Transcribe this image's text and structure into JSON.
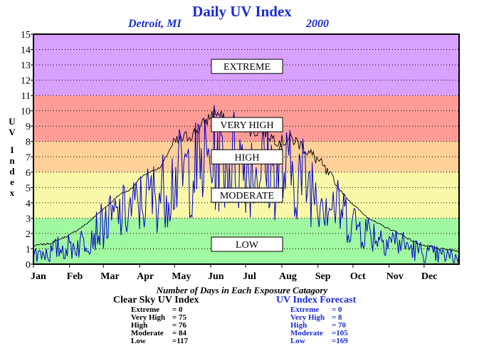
{
  "header": {
    "title": "Daily UV Index",
    "location": "Detroit, MI",
    "year": "2000"
  },
  "axis": {
    "ylabel_chars": [
      "U",
      "V",
      "I",
      "n",
      "d",
      "e",
      "x"
    ]
  },
  "footer": {
    "caption": "Number of Days in Each Exposure Catagory",
    "clear_sky": {
      "heading": "Clear Sky UV Index",
      "rows": [
        {
          "label": "Extreme",
          "value": "= 0"
        },
        {
          "label": "Very High",
          "value": "= 75"
        },
        {
          "label": "High",
          "value": "= 76"
        },
        {
          "label": "Moderate",
          "value": "= 84"
        },
        {
          "label": "Low",
          "value": "=117"
        }
      ]
    },
    "forecast": {
      "heading": "UV Index Forecast",
      "rows": [
        {
          "label": "Extreme",
          "value": "= 0"
        },
        {
          "label": "Very High",
          "value": "= 8"
        },
        {
          "label": "High",
          "value": "= 70"
        },
        {
          "label": "Moderate",
          "value": "=105"
        },
        {
          "label": "Low",
          "value": "=169"
        }
      ]
    }
  },
  "chart_data": {
    "type": "line",
    "title": "Daily UV Index",
    "subtitle": "Detroit, MI 2000",
    "ylabel": "UV Index",
    "xlabel": "",
    "xlim": [
      1,
      366
    ],
    "ylim": [
      0,
      15
    ],
    "yticks": [
      0,
      1,
      2,
      3,
      4,
      5,
      6,
      7,
      8,
      9,
      10,
      11,
      12,
      13,
      14,
      15
    ],
    "x_tick_labels": [
      "Jan",
      "Feb",
      "Mar",
      "Apr",
      "May",
      "Jun",
      "Jul",
      "Aug",
      "Sep",
      "Oct",
      "Nov",
      "Dec"
    ],
    "x_tick_days": [
      1,
      32,
      61,
      92,
      122,
      153,
      183,
      214,
      245,
      275,
      306,
      336
    ],
    "grid": true,
    "bands": [
      {
        "label": "LOW",
        "from": 0,
        "to": 3,
        "color": "#a0f8a0",
        "label_y": 1.3
      },
      {
        "label": "MODERATE",
        "from": 3,
        "to": 6,
        "color": "#f8f8a8",
        "label_y": 4.5
      },
      {
        "label": "HIGH",
        "from": 6,
        "to": 8,
        "color": "#ffd098",
        "label_y": 7.0
      },
      {
        "label": "VERY HIGH",
        "from": 8,
        "to": 11,
        "color": "#ff9c98",
        "label_y": 9.1
      },
      {
        "label": "EXTREME",
        "from": 11,
        "to": 15,
        "color": "#d8a0ff",
        "label_y": 12.9
      }
    ],
    "series": [
      {
        "name": "Clear Sky UV Index",
        "color": "#000000",
        "points": [
          [
            1,
            1.2
          ],
          [
            15,
            1.35
          ],
          [
            32,
            1.9
          ],
          [
            46,
            2.6
          ],
          [
            61,
            3.6
          ],
          [
            76,
            4.6
          ],
          [
            85,
            4.9
          ],
          [
            92,
            5.6
          ],
          [
            100,
            6.0
          ],
          [
            110,
            6.3
          ],
          [
            118,
            7.5
          ],
          [
            122,
            7.9
          ],
          [
            132,
            8.3
          ],
          [
            140,
            8.6
          ],
          [
            150,
            9.4
          ],
          [
            156,
            10.0
          ],
          [
            162,
            9.6
          ],
          [
            168,
            9.1
          ],
          [
            172,
            9.4
          ],
          [
            178,
            9.2
          ],
          [
            183,
            9.0
          ],
          [
            190,
            8.6
          ],
          [
            197,
            8.8
          ],
          [
            205,
            8.3
          ],
          [
            214,
            8.0
          ],
          [
            222,
            8.2
          ],
          [
            230,
            7.8
          ],
          [
            238,
            7.2
          ],
          [
            245,
            6.8
          ],
          [
            252,
            6.0
          ],
          [
            262,
            5.0
          ],
          [
            270,
            4.3
          ],
          [
            275,
            3.9
          ],
          [
            285,
            3.2
          ],
          [
            295,
            2.7
          ],
          [
            306,
            2.3
          ],
          [
            315,
            2.0
          ],
          [
            326,
            1.5
          ],
          [
            336,
            1.2
          ],
          [
            350,
            1.0
          ],
          [
            366,
            0.85
          ]
        ]
      },
      {
        "name": "UV Index Forecast",
        "color": "#0000cc",
        "points": [
          [
            1,
            0.6
          ],
          [
            8,
            0.9
          ],
          [
            15,
            0.8
          ],
          [
            22,
            1.1
          ],
          [
            32,
            1.2
          ],
          [
            40,
            1.4
          ],
          [
            46,
            1.8
          ],
          [
            53,
            2.3
          ],
          [
            61,
            2.7
          ],
          [
            68,
            3.1
          ],
          [
            76,
            3.4
          ],
          [
            85,
            3.8
          ],
          [
            92,
            4.1
          ],
          [
            100,
            4.6
          ],
          [
            110,
            4.9
          ],
          [
            118,
            5.6
          ],
          [
            122,
            6.0
          ],
          [
            132,
            6.3
          ],
          [
            140,
            6.6
          ],
          [
            150,
            7.0
          ],
          [
            156,
            7.2
          ],
          [
            162,
            7.1
          ],
          [
            168,
            7.0
          ],
          [
            172,
            7.3
          ],
          [
            178,
            7.0
          ],
          [
            183,
            6.9
          ],
          [
            190,
            6.6
          ],
          [
            197,
            6.8
          ],
          [
            205,
            6.4
          ],
          [
            214,
            6.2
          ],
          [
            222,
            6.3
          ],
          [
            230,
            6.0
          ],
          [
            238,
            5.6
          ],
          [
            245,
            5.2
          ],
          [
            252,
            4.6
          ],
          [
            262,
            3.8
          ],
          [
            270,
            3.3
          ],
          [
            275,
            2.9
          ],
          [
            285,
            2.4
          ],
          [
            295,
            2.0
          ],
          [
            306,
            1.8
          ],
          [
            315,
            1.5
          ],
          [
            326,
            1.1
          ],
          [
            336,
            0.8
          ],
          [
            350,
            0.6
          ],
          [
            366,
            0.5
          ]
        ]
      }
    ]
  }
}
